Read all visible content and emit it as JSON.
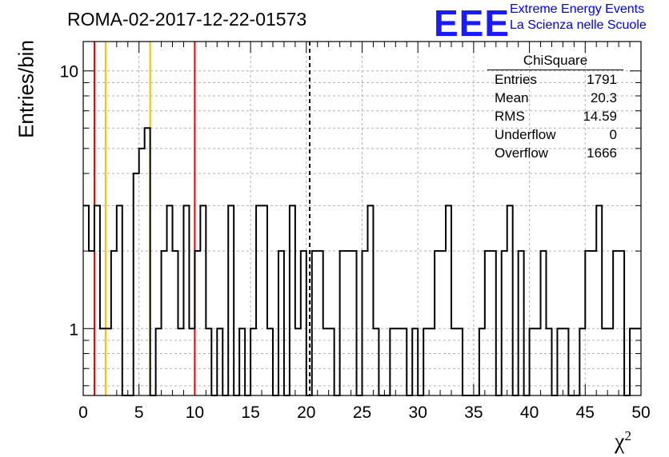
{
  "header": {
    "run_title": "ROMA-02-2017-12-22-01573",
    "brand_logo": "EEE",
    "brand_line1": "Extreme Energy Events",
    "brand_line2": "La Scienza nelle Scuole"
  },
  "colors": {
    "brand": "#1a1aff",
    "histogram": "#000000",
    "red_lines": "#e60000",
    "yellow_lines": "#f2c200",
    "grid": "#b0b0b0"
  },
  "stats": {
    "title": "ChiSquare",
    "rows": [
      {
        "label": "Entries",
        "value": "1791"
      },
      {
        "label": "Mean",
        "value": "20.3"
      },
      {
        "label": "RMS",
        "value": "14.59"
      },
      {
        "label": "Underflow",
        "value": "0"
      },
      {
        "label": "Overflow",
        "value": "1666"
      }
    ]
  },
  "chart_data": {
    "type": "bar",
    "histogram_style": "step",
    "xlabel": "χ",
    "xlabel_sup": "2",
    "ylabel": "Entries/bin",
    "xlim": [
      0,
      50
    ],
    "ylim": [
      0.55,
      13
    ],
    "y_scale": "log",
    "grid": true,
    "x_ticks": [
      0,
      5,
      10,
      15,
      20,
      25,
      30,
      35,
      40,
      45,
      50
    ],
    "y_tick_labels": [
      1,
      10
    ],
    "bin_width": 0.5,
    "bin_values": [
      3,
      2,
      3,
      1,
      1,
      2,
      3,
      0,
      0,
      4,
      5,
      6,
      0,
      1,
      2,
      3,
      2,
      1,
      3,
      1,
      2,
      3,
      1,
      0,
      1,
      0,
      3,
      0,
      1,
      0,
      1,
      3,
      3,
      1,
      0,
      2,
      0,
      3,
      1,
      2,
      0,
      2,
      2,
      1,
      1,
      0,
      2,
      2,
      2,
      0,
      2,
      3,
      1,
      0,
      0,
      1,
      1,
      1,
      0,
      1,
      0,
      1,
      1,
      2,
      2,
      3,
      1,
      1,
      0,
      0,
      0,
      1,
      2,
      2,
      0,
      2,
      3,
      0,
      2,
      0,
      1,
      1,
      2,
      1,
      0,
      1,
      1,
      0,
      0,
      1,
      2,
      2,
      3,
      1,
      1,
      2,
      2,
      0,
      1,
      1
    ],
    "vertical_lines": [
      {
        "x": 1,
        "color": "red"
      },
      {
        "x": 2,
        "color": "yellow"
      },
      {
        "x": 6,
        "color": "yellow"
      },
      {
        "x": 10,
        "color": "red"
      },
      {
        "x": 20.3,
        "color": "black",
        "style": "dashed"
      }
    ]
  }
}
